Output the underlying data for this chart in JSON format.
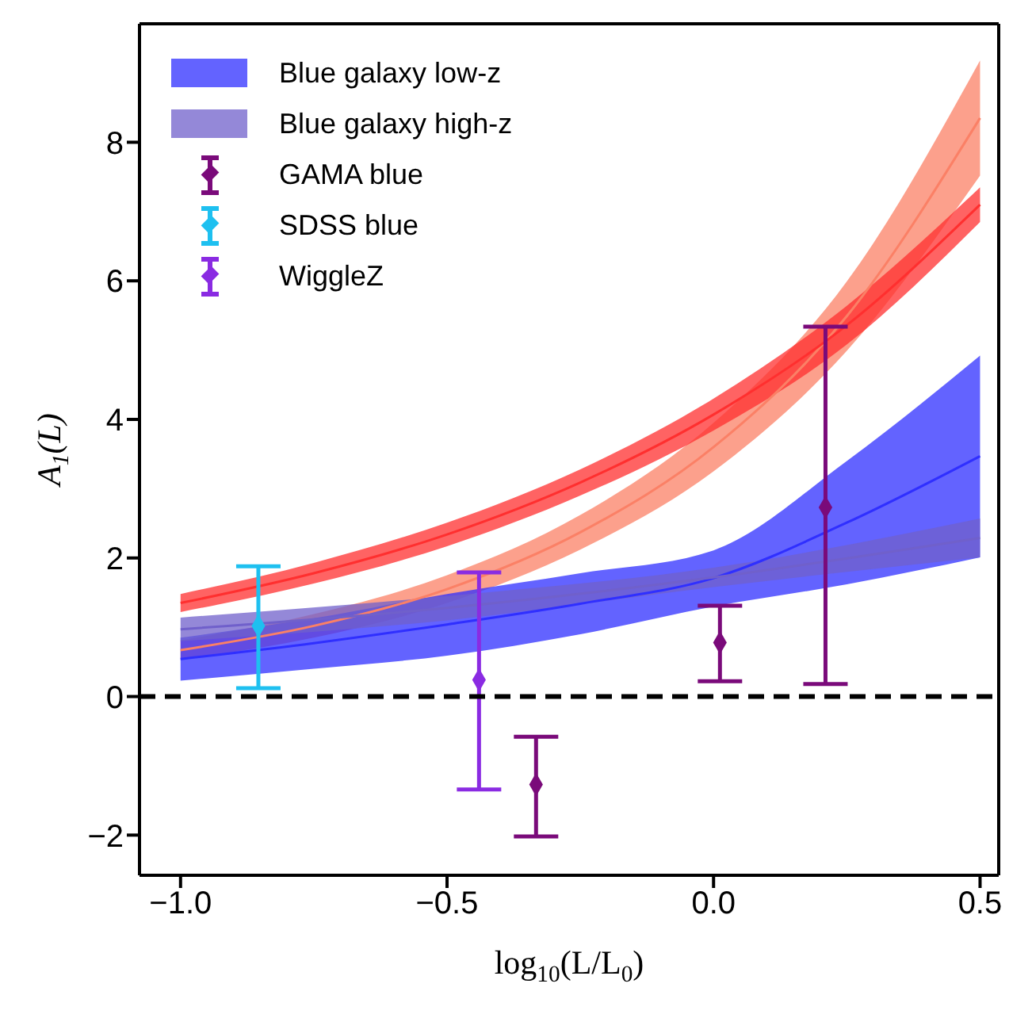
{
  "chart_data": {
    "type": "line",
    "xlabel": "log$_{10}$(L/L$_{0}$)",
    "ylabel": "A$_{1}$(L)",
    "xlim": [
      -1.077,
      0.535
    ],
    "xticks": [
      {
        "value": -1,
        "label": "−1.0"
      },
      {
        "value": -0.5,
        "label": "−0.5"
      },
      {
        "value": 0,
        "label": "0.0"
      },
      {
        "value": 0.5,
        "label": "0.5"
      }
    ],
    "ylim": [
      -2.58,
      9.71
    ],
    "yticks": [
      {
        "value": -2,
        "label": "−2"
      },
      0,
      2,
      4,
      6,
      8
    ],
    "grid": false,
    "legend": "top left",
    "ref_lines": [
      {
        "axis": "y",
        "value": 0,
        "color": "#000000",
        "line_style": "dashed"
      }
    ],
    "series": [
      {
        "color": "#fb8066",
        "x": [
          -1,
          -0.75,
          -0.5,
          -0.25,
          0,
          0.25,
          0.5
        ],
        "values": [
          0.67,
          1.02,
          1.55,
          2.37,
          3.6,
          5.49,
          8.35
        ],
        "lower": [
          0.53,
          0.85,
          1.35,
          2.12,
          3.25,
          4.99,
          7.52
        ],
        "upper": [
          0.81,
          1.19,
          1.75,
          2.62,
          3.95,
          5.99,
          9.18
        ]
      },
      {
        "color": "#ff2f2f",
        "x": [
          -1,
          -0.75,
          -0.5,
          -0.25,
          0,
          0.25,
          0.5
        ],
        "values": [
          1.35,
          1.78,
          2.34,
          3.09,
          4.07,
          5.36,
          7.1
        ],
        "lower": [
          1.22,
          1.63,
          2.17,
          2.9,
          3.84,
          5.08,
          6.85
        ],
        "upper": [
          1.48,
          1.93,
          2.51,
          3.28,
          4.3,
          5.64,
          7.35
        ]
      },
      {
        "name": "Blue galaxy low-z",
        "color": "#2f2fff",
        "x": [
          -1,
          -0.75,
          -0.5,
          -0.25,
          0,
          0.25,
          0.5
        ],
        "values": [
          0.54,
          0.77,
          1.04,
          1.34,
          1.71,
          2.51,
          3.47
        ],
        "lower": [
          0.23,
          0.4,
          0.59,
          0.9,
          1.3,
          1.62,
          2.01
        ],
        "upper": [
          0.85,
          1.13,
          1.48,
          1.78,
          2.11,
          3.4,
          4.92
        ]
      },
      {
        "name": "Blue galaxy high-z",
        "color": "#7060cb",
        "x": [
          -1,
          -0.5,
          0,
          0.5
        ],
        "values": [
          0.97,
          1.28,
          1.72,
          2.29
        ],
        "lower": [
          0.8,
          1.1,
          1.58,
          2.01
        ],
        "upper": [
          1.14,
          1.45,
          1.86,
          2.57
        ]
      },
      {
        "type": "scatter",
        "name": "GAMA blue",
        "color": "#7a0a7a",
        "marker": "diamond",
        "x": [
          -0.333,
          0.012,
          0.21
        ],
        "values": [
          -1.27,
          0.78,
          2.73
        ],
        "errors": [
          [
            -2.02,
            -0.58
          ],
          [
            0.22,
            1.31
          ],
          [
            0.18,
            5.34
          ]
        ]
      },
      {
        "type": "scatter",
        "name": "SDSS blue",
        "color": "#1ec0f0",
        "marker": "diamond",
        "x": [
          -0.854
        ],
        "values": [
          1.02
        ],
        "errors": [
          [
            0.12,
            1.88
          ]
        ]
      },
      {
        "type": "scatter",
        "name": "WiggleZ",
        "color": "#8a2be2",
        "marker": "diamond",
        "x": [
          -0.44
        ],
        "values": [
          0.24
        ],
        "errors": [
          [
            -1.34,
            1.79
          ]
        ]
      }
    ]
  }
}
